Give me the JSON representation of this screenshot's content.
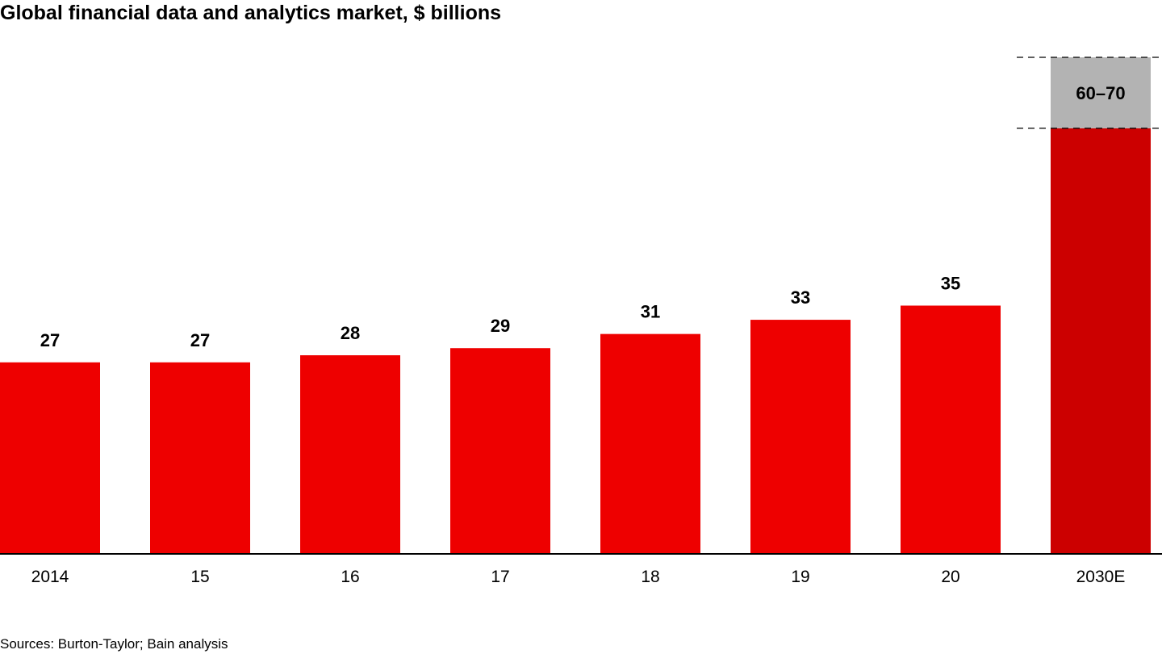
{
  "chart_data": {
    "type": "bar",
    "title": "Global financial data and analytics market, $ billions",
    "categories": [
      "2014",
      "15",
      "16",
      "17",
      "18",
      "19",
      "20",
      "2030E"
    ],
    "values": [
      27,
      27,
      28,
      29,
      31,
      33,
      35,
      null
    ],
    "labels": [
      "27",
      "27",
      "28",
      "29",
      "31",
      "33",
      "35",
      "60–70"
    ],
    "estimate": {
      "category": "2030E",
      "low": 60,
      "high": 70,
      "label": "60–70"
    },
    "xlabel": "",
    "ylabel": "",
    "ylim": [
      0,
      70
    ],
    "grid": false,
    "legend": "none",
    "source": "Sources: Burton-Taylor; Bain analysis"
  },
  "colors": {
    "bar": "#ee0000",
    "estimate_bar": "#cc0000",
    "estimate_range": "#b3b3b3",
    "axis": "#000000"
  }
}
